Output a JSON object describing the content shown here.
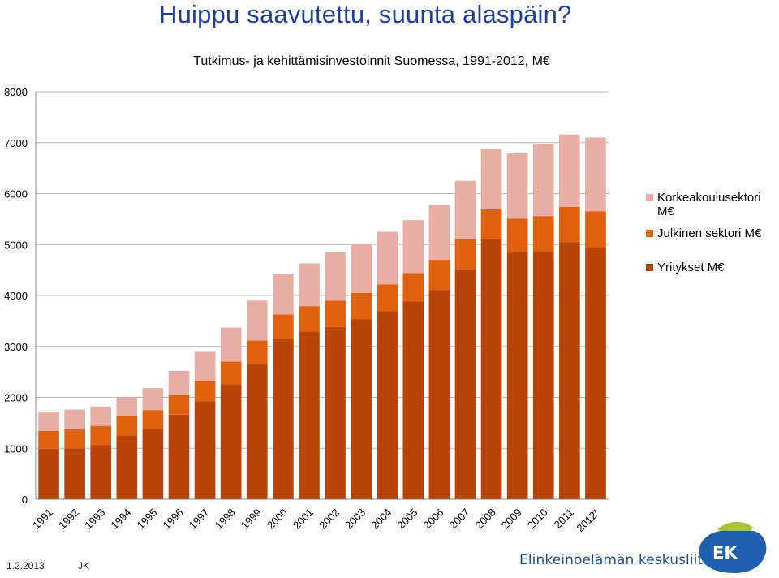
{
  "slide": {
    "headline": "Huippu saavutettu, suunta alaspäin?",
    "footer_date": "1.2.2013",
    "footer_author": "JK",
    "brand_name": "Elinkeinoelämän keskusliitto",
    "logo_text": "EK",
    "brand_colors": {
      "logo_blue": "#1d5fae",
      "logo_green": "#a7c43c",
      "headline": "#1f3f9a"
    }
  },
  "chart_data": {
    "type": "bar",
    "stacked": true,
    "title": "Tutkimus- ja kehittämisinvestoinnit Suomessa, 1991-2012, M€",
    "xlabel": "",
    "ylabel": "",
    "ylim": [
      0,
      8000
    ],
    "yticks": [
      "0",
      "1000",
      "2000",
      "3000",
      "4000",
      "5000",
      "6000",
      "7000",
      "8000"
    ],
    "grid": true,
    "legend_position": "right",
    "categories": [
      "1991",
      "1992",
      "1993",
      "1994",
      "1995",
      "1996",
      "1997",
      "1998",
      "1999",
      "2000",
      "2001",
      "2002",
      "2003",
      "2004",
      "2005",
      "2006",
      "2007",
      "2008",
      "2009",
      "2010",
      "2011",
      "2012*"
    ],
    "series": [
      {
        "name": "Yritykset M€",
        "color": "#b94608",
        "values": [
          990,
          1000,
          1060,
          1250,
          1380,
          1660,
          1920,
          2260,
          2650,
          3140,
          3290,
          3380,
          3530,
          3690,
          3880,
          4110,
          4520,
          5100,
          4850,
          4860,
          5050,
          4950
        ]
      },
      {
        "name": "Julkinen sektori M€",
        "color": "#e0620f",
        "values": [
          350,
          370,
          380,
          390,
          370,
          390,
          410,
          440,
          470,
          490,
          500,
          520,
          520,
          530,
          560,
          590,
          580,
          590,
          660,
          700,
          690,
          700
        ]
      },
      {
        "name": "Korkeakoulusektori M€",
        "color": "#e8aea3",
        "values": [
          380,
          390,
          380,
          370,
          430,
          470,
          580,
          670,
          780,
          800,
          840,
          950,
          960,
          1030,
          1040,
          1080,
          1150,
          1180,
          1280,
          1420,
          1420,
          1450
        ]
      }
    ],
    "legend_order": [
      "Korkeakoulusektori M€",
      "Julkinen sektori M€",
      "Yritykset M€"
    ]
  }
}
